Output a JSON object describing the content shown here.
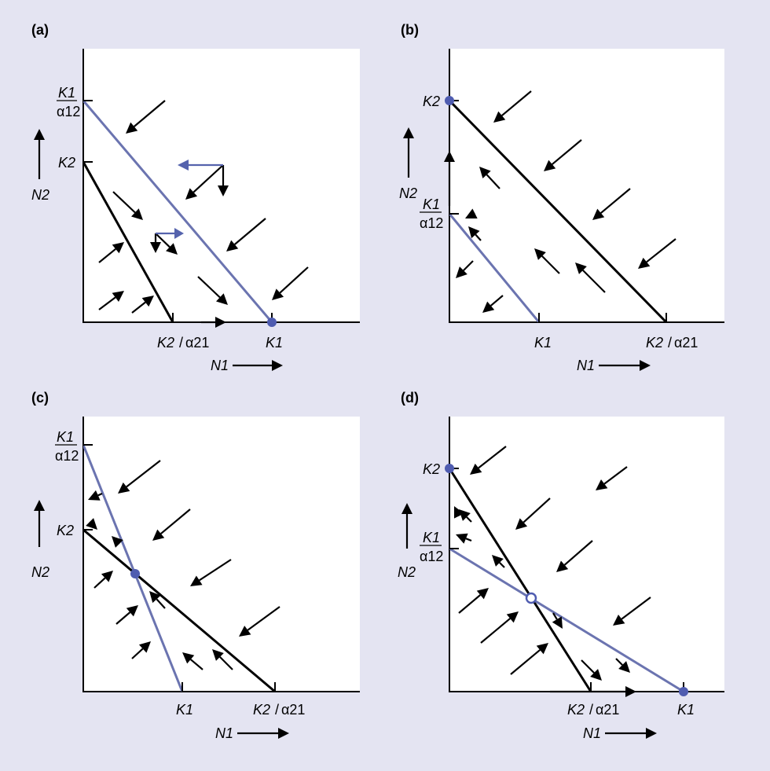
{
  "colors": {
    "background": "#e4e4f2",
    "blue_isocline": "#6b74b0",
    "equilibrium": "#4f5cb0"
  },
  "axis_labels": {
    "x": "N1",
    "y": "N2"
  },
  "tick_symbols": {
    "k1": "K1",
    "k2": "K2",
    "alpha12": "α12",
    "alpha21": "α21"
  },
  "panels": [
    {
      "id": "a",
      "label": "(a)",
      "x_ticks": [
        "K2/α21",
        "K1"
      ],
      "y_ticks": [
        "K1/α12",
        "K2"
      ],
      "stable_equilibrium": "K1"
    },
    {
      "id": "b",
      "label": "(b)",
      "x_ticks": [
        "K1",
        "K2/α21"
      ],
      "y_ticks": [
        "K2",
        "K1/α12"
      ],
      "stable_equilibrium": "K2"
    },
    {
      "id": "c",
      "label": "(c)",
      "x_ticks": [
        "K1",
        "K2/α21"
      ],
      "y_ticks": [
        "K1/α12",
        "K2"
      ],
      "stable_equilibrium": "interior"
    },
    {
      "id": "d",
      "label": "(d)",
      "x_ticks": [
        "K2/α21",
        "K1"
      ],
      "y_ticks": [
        "K2",
        "K1/α12"
      ],
      "stable_equilibrium": "K1 and K2",
      "unstable_equilibrium": "interior"
    }
  ]
}
